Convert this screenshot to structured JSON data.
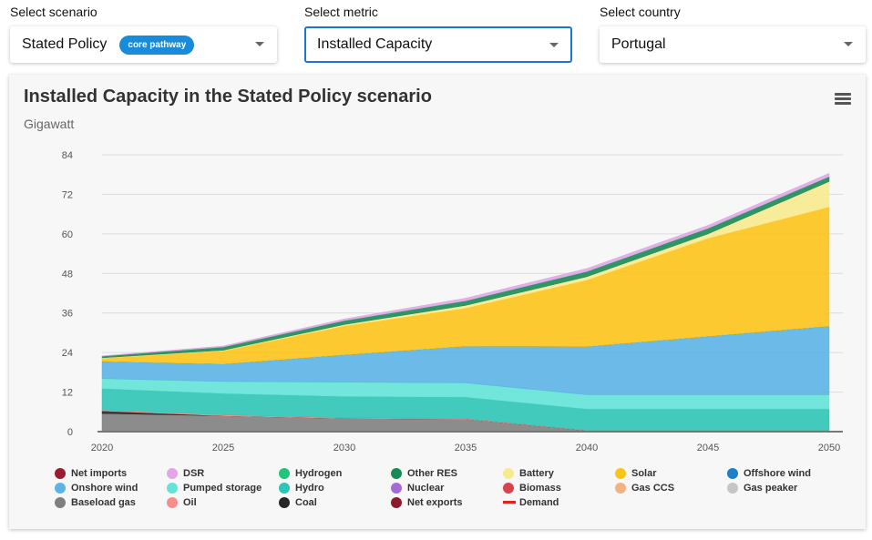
{
  "selectors": [
    {
      "label": "Select scenario",
      "value": "Stated Policy",
      "badge": "core pathway"
    },
    {
      "label": "Select metric",
      "value": "Installed Capacity"
    },
    {
      "label": "Select country",
      "value": "Portugal"
    }
  ],
  "chart_data": {
    "type": "area",
    "stacked": true,
    "title": "Installed Capacity in the Stated Policy scenario",
    "subtitle": "Gigawatt",
    "xlabel": "",
    "ylabel": "",
    "x": [
      2020,
      2025,
      2030,
      2035,
      2040,
      2045,
      2050
    ],
    "ylim": [
      0,
      84
    ],
    "yticks": [
      0,
      12,
      24,
      36,
      48,
      60,
      72,
      84
    ],
    "grid": true,
    "legend_position": "bottom",
    "series": [
      {
        "name": "Baseload gas",
        "color": "#7f7f7f",
        "values": [
          5.5,
          4.8,
          4.0,
          3.8,
          0.3,
          0.3,
          0.3
        ]
      },
      {
        "name": "Coal",
        "color": "#262626",
        "values": [
          0.8,
          0,
          0,
          0,
          0,
          0,
          0
        ]
      },
      {
        "name": "Oil",
        "color": "#f88d8d",
        "values": [
          0.3,
          0.3,
          0.2,
          0.2,
          0.1,
          0.1,
          0.1
        ]
      },
      {
        "name": "Hydro",
        "color": "#2ec4b6",
        "values": [
          6.5,
          6.5,
          6.5,
          6.5,
          6.5,
          6.5,
          6.5
        ]
      },
      {
        "name": "Pumped storage",
        "color": "#64e3d8",
        "values": [
          3.0,
          3.6,
          4.3,
          4.3,
          4.3,
          4.3,
          4.3
        ]
      },
      {
        "name": "Onshore wind",
        "color": "#5bb3e6",
        "values": [
          5.2,
          5.3,
          8.3,
          11.1,
          14.6,
          17.7,
          20.8
        ]
      },
      {
        "name": "Offshore wind",
        "color": "#1f7fc8",
        "values": [
          0,
          0,
          0,
          0,
          0,
          0,
          0
        ]
      },
      {
        "name": "Solar",
        "color": "#fcc419",
        "values": [
          1.0,
          4.0,
          8.8,
          11.6,
          20.2,
          29.8,
          36.2
        ]
      },
      {
        "name": "Battery",
        "color": "#f7ea8f",
        "values": [
          0.1,
          0.2,
          0.4,
          0.8,
          1.0,
          1.3,
          7.7
        ]
      },
      {
        "name": "Other RES",
        "color": "#1a8a55",
        "values": [
          0.5,
          1.0,
          1.2,
          1.4,
          1.6,
          1.7,
          1.5
        ]
      },
      {
        "name": "Hydrogen",
        "color": "#22c475",
        "values": [
          0,
          0,
          0,
          0,
          0,
          0,
          0
        ]
      },
      {
        "name": "DSR",
        "color": "#e0a6e6",
        "values": [
          0.1,
          0.3,
          0.5,
          0.8,
          0.9,
          0.9,
          1.0
        ]
      }
    ],
    "legend": [
      {
        "name": "Net imports",
        "color": "#9b1b30",
        "marker": "circle"
      },
      {
        "name": "DSR",
        "color": "#e0a6e6",
        "marker": "circle"
      },
      {
        "name": "Hydrogen",
        "color": "#22c475",
        "marker": "circle"
      },
      {
        "name": "Other RES",
        "color": "#1a8a55",
        "marker": "circle"
      },
      {
        "name": "Battery",
        "color": "#f7ea8f",
        "marker": "circle"
      },
      {
        "name": "Solar",
        "color": "#fcc419",
        "marker": "circle"
      },
      {
        "name": "Offshore wind",
        "color": "#1f7fc8",
        "marker": "circle"
      },
      {
        "name": "Onshore wind",
        "color": "#5bb3e6",
        "marker": "circle"
      },
      {
        "name": "Pumped storage",
        "color": "#64e3d8",
        "marker": "circle"
      },
      {
        "name": "Hydro",
        "color": "#2ec4b6",
        "marker": "circle"
      },
      {
        "name": "Nuclear",
        "color": "#a66ad6",
        "marker": "circle"
      },
      {
        "name": "Biomass",
        "color": "#d9434c",
        "marker": "circle"
      },
      {
        "name": "Gas CCS",
        "color": "#f4b183",
        "marker": "circle"
      },
      {
        "name": "Gas peaker",
        "color": "#c6c6c6",
        "marker": "circle"
      },
      {
        "name": "Baseload gas",
        "color": "#7f7f7f",
        "marker": "circle"
      },
      {
        "name": "Oil",
        "color": "#f88d8d",
        "marker": "circle"
      },
      {
        "name": "Coal",
        "color": "#262626",
        "marker": "circle"
      },
      {
        "name": "Net exports",
        "color": "#8b1a2b",
        "marker": "circle"
      },
      {
        "name": "Demand",
        "color": "#e8201a",
        "marker": "line"
      }
    ]
  }
}
